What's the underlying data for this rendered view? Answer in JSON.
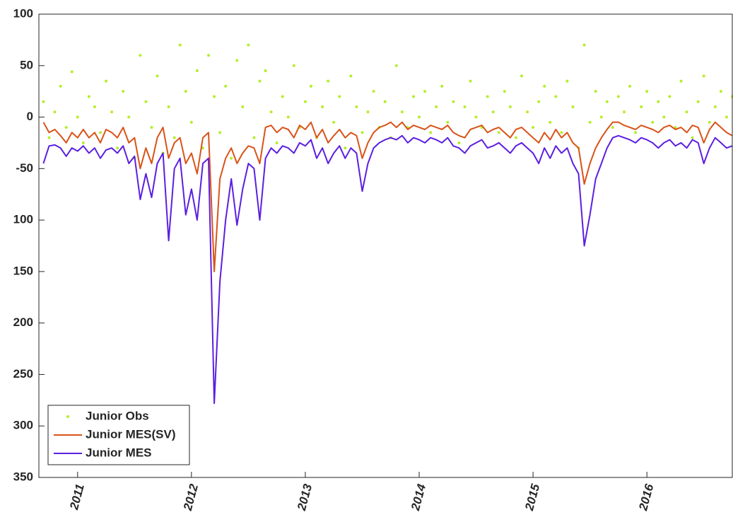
{
  "chart_data": {
    "type": "line",
    "x": [
      2010.7,
      2010.75,
      2010.8,
      2010.85,
      2010.9,
      2010.95,
      2011,
      2011.05,
      2011.1,
      2011.15,
      2011.2,
      2011.25,
      2011.3,
      2011.35,
      2011.4,
      2011.45,
      2011.5,
      2011.55,
      2011.6,
      2011.65,
      2011.7,
      2011.75,
      2011.8,
      2011.85,
      2011.9,
      2011.95,
      2012,
      2012.05,
      2012.1,
      2012.15,
      2012.2,
      2012.25,
      2012.3,
      2012.35,
      2012.4,
      2012.45,
      2012.5,
      2012.55,
      2012.6,
      2012.65,
      2012.7,
      2012.75,
      2012.8,
      2012.85,
      2012.9,
      2012.95,
      2013,
      2013.05,
      2013.1,
      2013.15,
      2013.2,
      2013.25,
      2013.3,
      2013.35,
      2013.4,
      2013.45,
      2013.5,
      2013.55,
      2013.6,
      2013.65,
      2013.7,
      2013.75,
      2013.8,
      2013.85,
      2013.9,
      2013.95,
      2014,
      2014.05,
      2014.1,
      2014.15,
      2014.2,
      2014.25,
      2014.3,
      2014.35,
      2014.4,
      2014.45,
      2014.5,
      2014.55,
      2014.6,
      2014.65,
      2014.7,
      2014.75,
      2014.8,
      2014.85,
      2014.9,
      2014.95,
      2015,
      2015.05,
      2015.1,
      2015.15,
      2015.2,
      2015.25,
      2015.3,
      2015.35,
      2015.4,
      2015.45,
      2015.5,
      2015.55,
      2015.6,
      2015.65,
      2015.7,
      2015.75,
      2015.8,
      2015.85,
      2015.9,
      2015.95,
      2016,
      2016.05,
      2016.1,
      2016.15,
      2016.2,
      2016.25,
      2016.3,
      2016.35,
      2016.4,
      2016.45,
      2016.5,
      2016.55,
      2016.6,
      2016.65,
      2016.7,
      2016.75
    ],
    "series": [
      {
        "name": "Junior Obs",
        "style": "scatter",
        "color": "#b5ee2c",
        "values": [
          15,
          -20,
          5,
          30,
          -10,
          44,
          0,
          -25,
          20,
          10,
          -15,
          35,
          5,
          -30,
          25,
          0,
          -40,
          60,
          15,
          -10,
          40,
          -35,
          10,
          -20,
          70,
          25,
          -5,
          45,
          -30,
          60,
          20,
          -15,
          30,
          -40,
          55,
          10,
          70,
          -20,
          35,
          45,
          5,
          -25,
          20,
          0,
          50,
          -10,
          15,
          30,
          -20,
          10,
          35,
          -5,
          20,
          -30,
          40,
          10,
          -15,
          5,
          25,
          -10,
          15,
          -20,
          50,
          5,
          -10,
          20,
          0,
          25,
          -15,
          10,
          30,
          -5,
          15,
          -25,
          10,
          35,
          0,
          -10,
          20,
          5,
          -15,
          25,
          10,
          -20,
          40,
          5,
          -10,
          15,
          30,
          -5,
          20,
          -15,
          35,
          10,
          -30,
          70,
          -5,
          25,
          0,
          15,
          -10,
          20,
          5,
          30,
          -15,
          10,
          25,
          -5,
          15,
          0,
          20,
          -10,
          35,
          5,
          -20,
          15,
          40,
          -5,
          10,
          25,
          0,
          20
        ]
      },
      {
        "name": "Junior MES(SV)",
        "style": "line",
        "color": "#d95319",
        "values": [
          -5,
          -15,
          -12,
          -18,
          -25,
          -15,
          -20,
          -12,
          -20,
          -15,
          -25,
          -12,
          -15,
          -20,
          -10,
          -25,
          -20,
          -50,
          -30,
          -45,
          -20,
          -10,
          -40,
          -25,
          -20,
          -45,
          -35,
          -55,
          -20,
          -15,
          -150,
          -60,
          -40,
          -30,
          -45,
          -35,
          -28,
          -30,
          -45,
          -10,
          -8,
          -15,
          -10,
          -12,
          -20,
          -8,
          -12,
          -5,
          -20,
          -12,
          -25,
          -18,
          -12,
          -20,
          -15,
          -18,
          -40,
          -25,
          -15,
          -10,
          -8,
          -5,
          -10,
          -5,
          -12,
          -8,
          -10,
          -12,
          -8,
          -10,
          -12,
          -8,
          -15,
          -18,
          -20,
          -12,
          -10,
          -8,
          -15,
          -12,
          -10,
          -15,
          -20,
          -12,
          -10,
          -15,
          -20,
          -25,
          -15,
          -22,
          -12,
          -20,
          -15,
          -25,
          -30,
          -65,
          -45,
          -30,
          -20,
          -12,
          -5,
          -5,
          -8,
          -10,
          -12,
          -8,
          -10,
          -12,
          -15,
          -10,
          -8,
          -12,
          -10,
          -15,
          -8,
          -10,
          -25,
          -12,
          -5,
          -10,
          -15,
          -18
        ]
      },
      {
        "name": "Junior MES",
        "style": "line",
        "color": "#5b1fe0",
        "values": [
          -45,
          -28,
          -27,
          -30,
          -38,
          -30,
          -33,
          -28,
          -35,
          -30,
          -40,
          -32,
          -30,
          -35,
          -28,
          -45,
          -38,
          -80,
          -55,
          -78,
          -45,
          -35,
          -120,
          -50,
          -40,
          -95,
          -70,
          -100,
          -45,
          -40,
          -278,
          -160,
          -100,
          -60,
          -105,
          -70,
          -45,
          -50,
          -100,
          -40,
          -30,
          -35,
          -28,
          -30,
          -35,
          -25,
          -28,
          -22,
          -40,
          -30,
          -45,
          -35,
          -28,
          -40,
          -30,
          -35,
          -72,
          -45,
          -30,
          -25,
          -22,
          -20,
          -22,
          -18,
          -25,
          -20,
          -22,
          -25,
          -20,
          -22,
          -25,
          -20,
          -28,
          -30,
          -35,
          -28,
          -25,
          -22,
          -30,
          -28,
          -25,
          -30,
          -35,
          -28,
          -25,
          -30,
          -35,
          -45,
          -30,
          -40,
          -28,
          -35,
          -30,
          -45,
          -55,
          -125,
          -95,
          -60,
          -45,
          -30,
          -20,
          -18,
          -20,
          -22,
          -25,
          -20,
          -22,
          -25,
          -30,
          -25,
          -22,
          -28,
          -25,
          -30,
          -22,
          -25,
          -45,
          -30,
          -20,
          -25,
          -30,
          -28
        ]
      }
    ],
    "xlim": [
      2010.66,
      2016.75
    ],
    "xticks": [
      2011,
      2012,
      2013,
      2014,
      2015,
      2016
    ],
    "ylim": [
      -350,
      100
    ],
    "yticks": [
      100,
      50,
      0,
      -50,
      {
        "value": -100,
        "label": "100"
      },
      {
        "value": -150,
        "label": "150"
      },
      {
        "value": -200,
        "label": "200"
      },
      {
        "value": -250,
        "label": "250"
      },
      {
        "value": -300,
        "label": "300"
      },
      {
        "value": -350,
        "label": "350"
      }
    ],
    "legend": "lower left"
  }
}
